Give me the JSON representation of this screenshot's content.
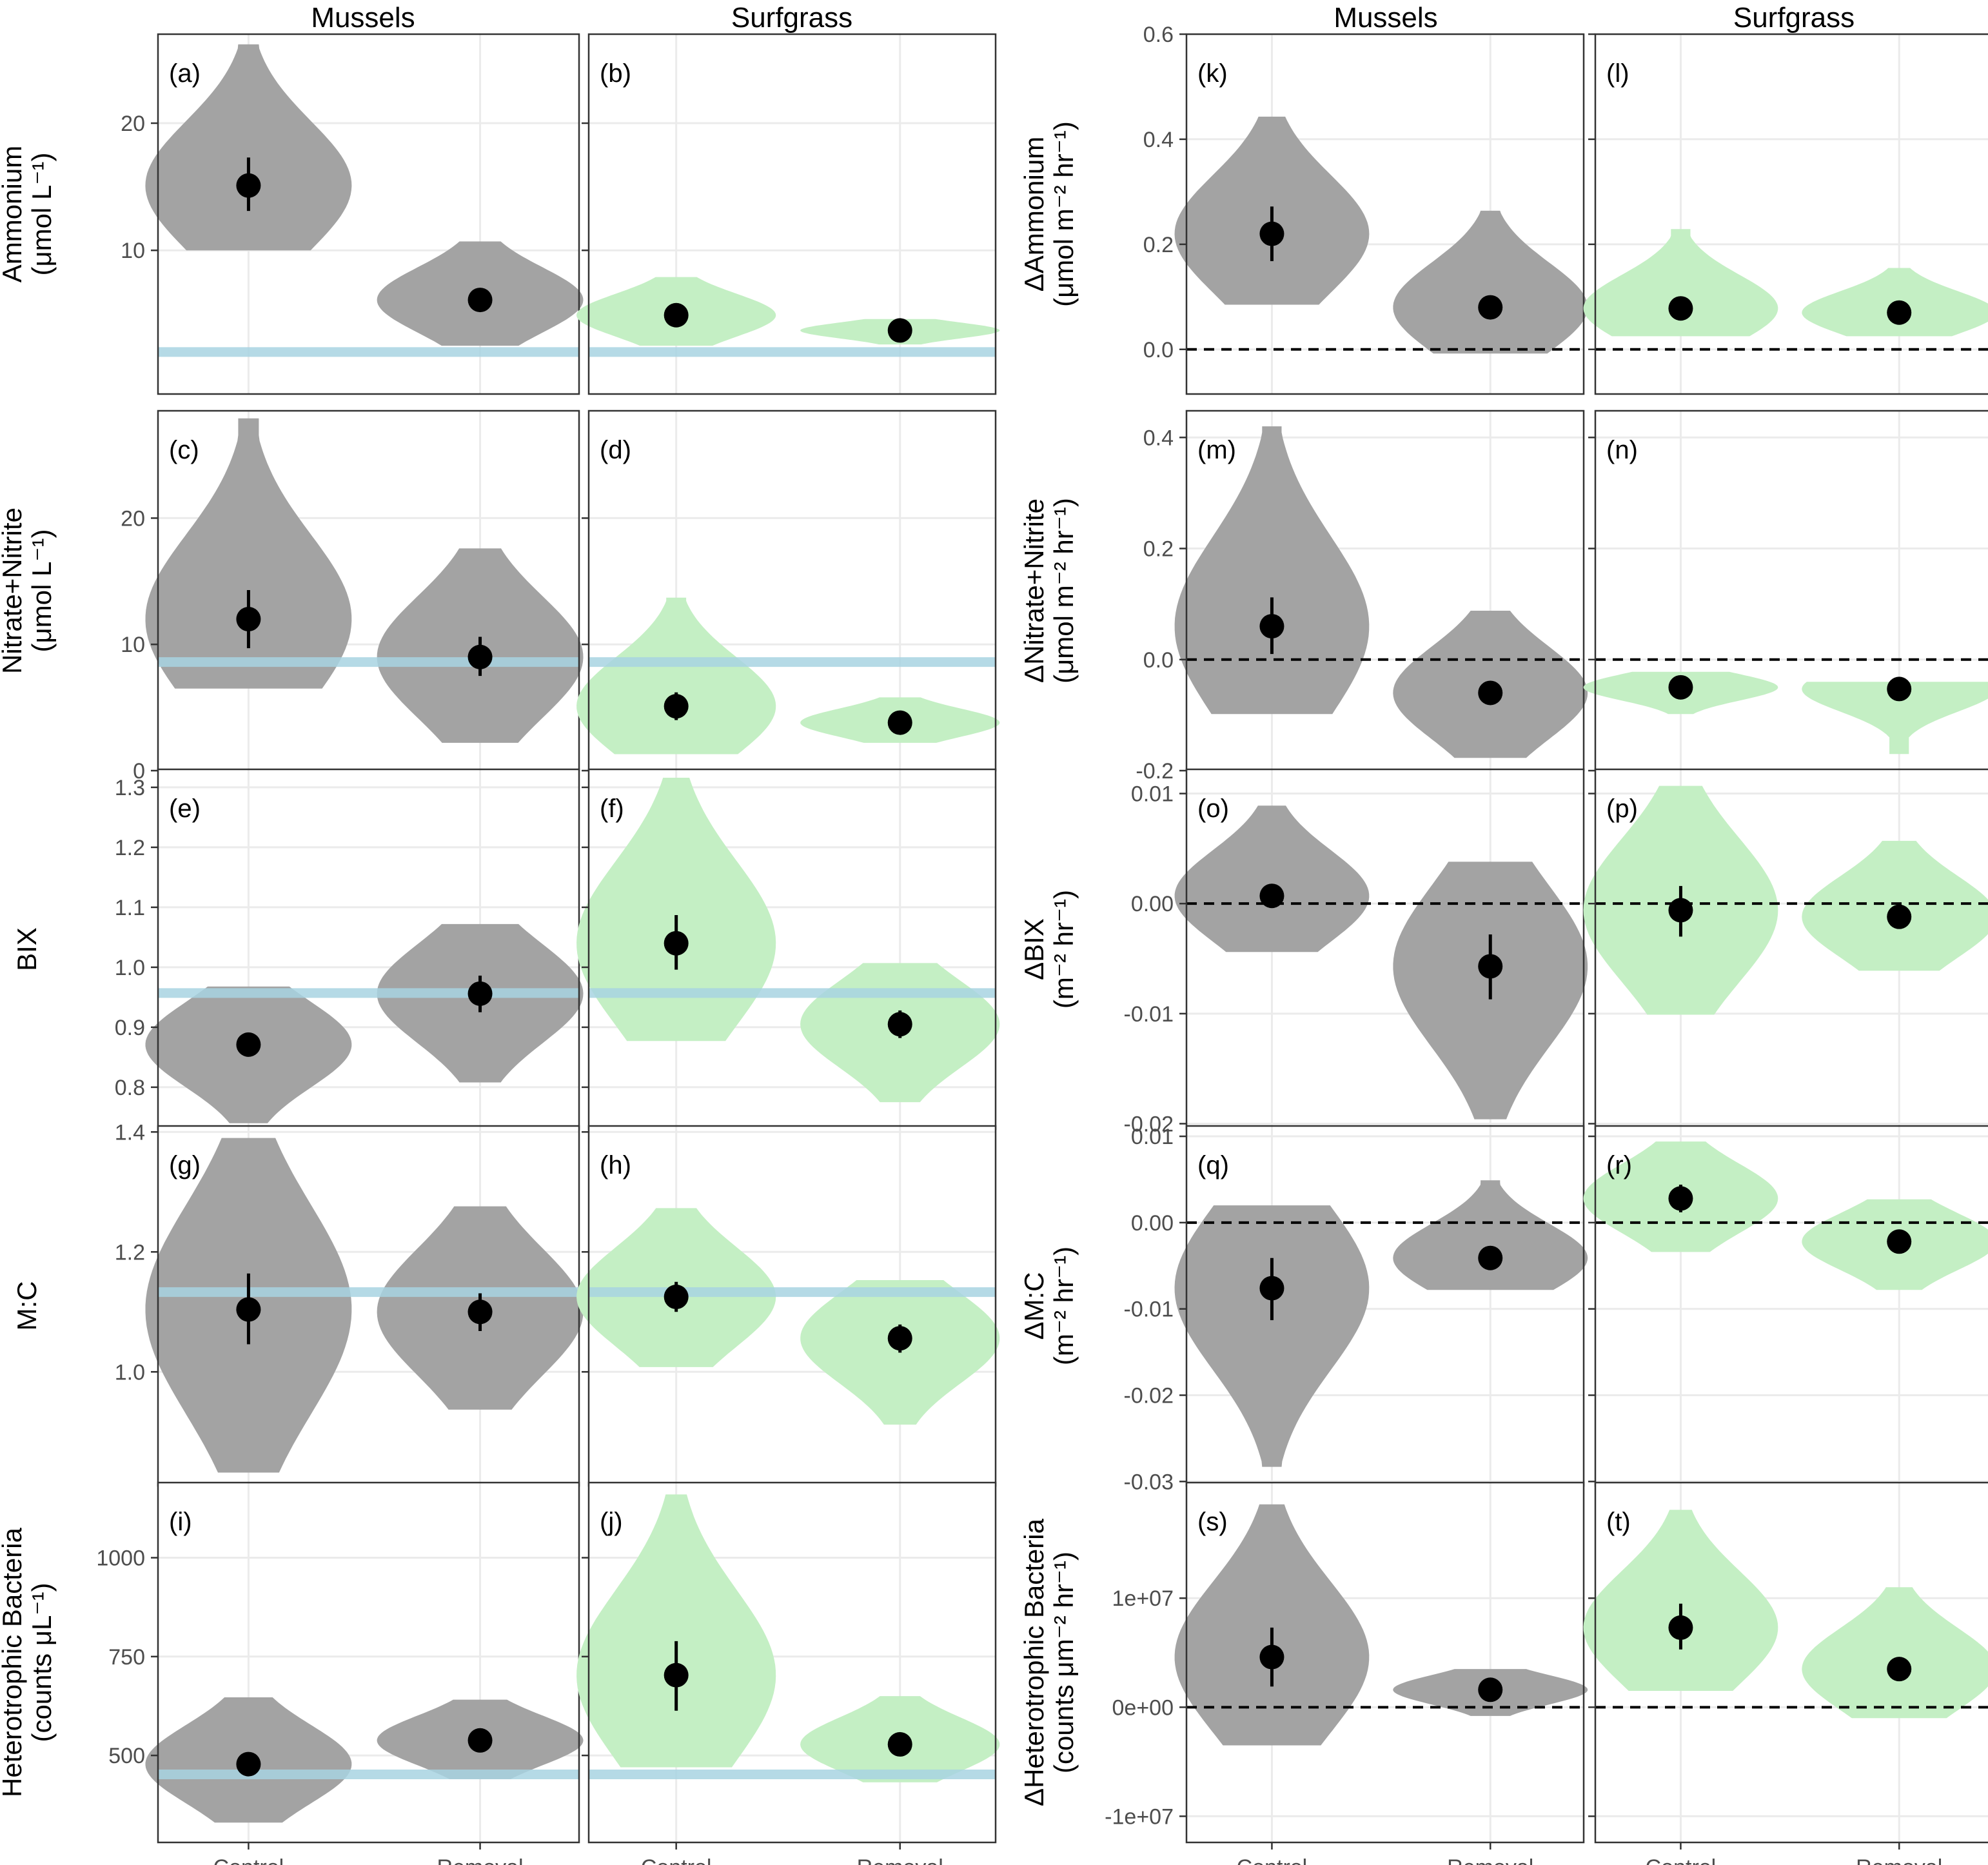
{
  "colors": {
    "mussels": "#a3a3a3",
    "surfgrass": "#c4efc4",
    "reference": "#a8d4e2",
    "point": "#000000",
    "grid": "#ebebeb",
    "border": "#333333"
  },
  "chart_data": {
    "type": "violin",
    "column_headers": {
      "left": [
        "Mussels",
        "Surfgrass"
      ],
      "right": [
        "Mussels",
        "Surfgrass"
      ]
    },
    "x_categories": [
      "Control",
      "Removal"
    ],
    "left_rows": [
      {
        "ylabel": [
          "Ammonium",
          "(μmol L⁻¹)"
        ],
        "ylim": [
          -1.3,
          27
        ],
        "ticks": [
          10,
          20
        ],
        "tick_labels": [
          "10",
          "20"
        ],
        "reference_line": 2,
        "panels": [
          {
            "label": "(a)",
            "group": "Mussels",
            "points": [
              {
                "category": "Control",
                "mean": 15.1,
                "lo": 13.1,
                "hi": 17.3,
                "min": 10,
                "max": 26.2
              },
              {
                "category": "Removal",
                "mean": 6.1,
                "lo": 5.4,
                "hi": 6.9,
                "min": 2.5,
                "max": 10.7
              }
            ]
          },
          {
            "label": "(b)",
            "group": "Surfgrass",
            "points": [
              {
                "category": "Control",
                "mean": 4.9,
                "lo": 4.3,
                "hi": 5.5,
                "min": 2.5,
                "max": 7.9
              },
              {
                "category": "Removal",
                "mean": 3.7,
                "lo": 3.4,
                "hi": 4.0,
                "min": 2.6,
                "max": 4.6
              }
            ]
          }
        ]
      },
      {
        "ylabel": [
          "Nitrate+Nitrite",
          "(μmol L⁻¹)"
        ],
        "ylim": [
          0,
          28.5
        ],
        "ticks": [
          0,
          10,
          20
        ],
        "tick_labels": [
          "0",
          "10",
          "20"
        ],
        "reference_line": 8.6,
        "panels": [
          {
            "label": "(c)",
            "group": "Mussels",
            "points": [
              {
                "category": "Control",
                "mean": 12.0,
                "lo": 9.7,
                "hi": 14.3,
                "min": 6.5,
                "max": 27.9
              },
              {
                "category": "Removal",
                "mean": 9.0,
                "lo": 7.5,
                "hi": 10.6,
                "min": 2.2,
                "max": 17.6
              }
            ]
          },
          {
            "label": "(d)",
            "group": "Surfgrass",
            "points": [
              {
                "category": "Control",
                "mean": 5.1,
                "lo": 4.0,
                "hi": 6.2,
                "min": 1.3,
                "max": 13.7
              },
              {
                "category": "Removal",
                "mean": 3.8,
                "lo": 3.4,
                "hi": 4.2,
                "min": 2.2,
                "max": 5.8
              }
            ]
          }
        ]
      },
      {
        "ylabel": [
          "BIX"
        ],
        "ylim": [
          0.73,
          1.33
        ],
        "ticks": [
          0.8,
          0.9,
          1.0,
          1.1,
          1.2,
          1.3
        ],
        "tick_labels": [
          "0.8",
          "0.9",
          "1.0",
          "1.1",
          "1.2",
          "1.3"
        ],
        "reference_line": 0.957,
        "panels": [
          {
            "label": "(e)",
            "group": "Mussels",
            "points": [
              {
                "category": "Control",
                "mean": 0.871,
                "lo": 0.851,
                "hi": 0.891,
                "min": 0.74,
                "max": 0.968
              },
              {
                "category": "Removal",
                "mean": 0.956,
                "lo": 0.925,
                "hi": 0.986,
                "min": 0.808,
                "max": 1.072
              }
            ]
          },
          {
            "label": "(f)",
            "group": "Surfgrass",
            "points": [
              {
                "category": "Control",
                "mean": 1.04,
                "lo": 0.996,
                "hi": 1.087,
                "min": 0.877,
                "max": 1.316
              },
              {
                "category": "Removal",
                "mean": 0.905,
                "lo": 0.882,
                "hi": 0.928,
                "min": 0.775,
                "max": 1.007
              }
            ]
          }
        ]
      },
      {
        "ylabel": [
          "M:C"
        ],
        "ylim": [
          0.81,
          1.41
        ],
        "ticks": [
          1.0,
          1.2,
          1.4
        ],
        "tick_labels": [
          "1.0",
          "1.2",
          "1.4"
        ],
        "reference_line": 1.133,
        "panels": [
          {
            "label": "(g)",
            "group": "Mussels",
            "points": [
              {
                "category": "Control",
                "mean": 1.104,
                "lo": 1.046,
                "hi": 1.164,
                "min": 0.832,
                "max": 1.39
              },
              {
                "category": "Removal",
                "mean": 1.1,
                "lo": 1.068,
                "hi": 1.131,
                "min": 0.937,
                "max": 1.276
              }
            ]
          },
          {
            "label": "(h)",
            "group": "Surfgrass",
            "points": [
              {
                "category": "Control",
                "mean": 1.125,
                "lo": 1.1,
                "hi": 1.15,
                "min": 1.008,
                "max": 1.273
              },
              {
                "category": "Removal",
                "mean": 1.056,
                "lo": 1.032,
                "hi": 1.079,
                "min": 0.912,
                "max": 1.153
              }
            ]
          }
        ]
      },
      {
        "ylabel": [
          "Heterotrophic Bacteria",
          "(counts μL⁻¹)"
        ],
        "ylim": [
          280,
          1190
        ],
        "ticks": [
          500,
          750,
          1000
        ],
        "tick_labels": [
          "500",
          "750",
          "1000"
        ],
        "reference_line": 452,
        "panels": [
          {
            "label": "(i)",
            "group": "Mussels",
            "points": [
              {
                "category": "Control",
                "mean": 478,
                "lo": 455,
                "hi": 502,
                "min": 330,
                "max": 647
              },
              {
                "category": "Removal",
                "mean": 538,
                "lo": 530,
                "hi": 546,
                "min": 440,
                "max": 641
              }
            ]
          },
          {
            "label": "(j)",
            "group": "Surfgrass",
            "points": [
              {
                "category": "Control",
                "mean": 703,
                "lo": 613,
                "hi": 789,
                "min": 470,
                "max": 1160
              },
              {
                "category": "Removal",
                "mean": 528,
                "lo": 515,
                "hi": 541,
                "min": 432,
                "max": 650
              }
            ]
          }
        ]
      }
    ],
    "right_rows": [
      {
        "ylabel": [
          "ΔAmmonium",
          "(μmol m⁻² hr⁻¹)"
        ],
        "ylim": [
          -0.085,
          0.6
        ],
        "ticks": [
          0.0,
          0.2,
          0.4,
          0.6
        ],
        "tick_labels": [
          "0.0",
          "0.2",
          "0.4",
          "0.6"
        ],
        "zero_line": 0,
        "panels": [
          {
            "label": "(k)",
            "group": "Mussels",
            "points": [
              {
                "category": "Control",
                "mean": 0.22,
                "lo": 0.168,
                "hi": 0.272,
                "min": 0.085,
                "max": 0.443
              },
              {
                "category": "Removal",
                "mean": 0.08,
                "lo": 0.06,
                "hi": 0.1,
                "min": -0.008,
                "max": 0.264
              }
            ]
          },
          {
            "label": "(l)",
            "group": "Surfgrass",
            "points": [
              {
                "category": "Control",
                "mean": 0.078,
                "lo": 0.065,
                "hi": 0.09,
                "min": 0.025,
                "max": 0.229
              },
              {
                "category": "Removal",
                "mean": 0.07,
                "lo": 0.062,
                "hi": 0.078,
                "min": 0.025,
                "max": 0.155
              }
            ]
          }
        ]
      },
      {
        "ylabel": [
          "ΔNitrate+Nitrite",
          "(μmol m⁻² hr⁻¹)"
        ],
        "ylim": [
          -0.2,
          0.448
        ],
        "ticks": [
          -0.2,
          0.0,
          0.2,
          0.4
        ],
        "tick_labels": [
          "-0.2",
          "0.0",
          "0.2",
          "0.4"
        ],
        "zero_line": 0,
        "panels": [
          {
            "label": "(m)",
            "group": "Mussels",
            "points": [
              {
                "category": "Control",
                "mean": 0.06,
                "lo": 0.01,
                "hi": 0.112,
                "min": -0.098,
                "max": 0.42
              },
              {
                "category": "Removal",
                "mean": -0.06,
                "lo": -0.08,
                "hi": -0.04,
                "min": -0.177,
                "max": 0.088
              }
            ]
          },
          {
            "label": "(n)",
            "group": "Surfgrass",
            "points": [
              {
                "category": "Control",
                "mean": -0.05,
                "lo": -0.056,
                "hi": -0.044,
                "min": -0.098,
                "max": -0.022
              },
              {
                "category": "Removal",
                "mean": -0.053,
                "lo": -0.059,
                "hi": -0.047,
                "min": -0.17,
                "max": -0.04
              }
            ]
          }
        ]
      },
      {
        "ylabel": [
          "ΔBIX",
          "(m⁻² hr⁻¹)"
        ],
        "ylim": [
          -0.0205,
          0.0122
        ],
        "ticks": [
          -0.02,
          -0.01,
          0.0,
          0.01
        ],
        "tick_labels": [
          "-0.02",
          "-0.01",
          "0.00",
          "0.01"
        ],
        "zero_line": 0,
        "panels": [
          {
            "label": "(o)",
            "group": "Mussels",
            "points": [
              {
                "category": "Control",
                "mean": 0.0007,
                "lo": -0.0003,
                "hi": 0.0017,
                "min": -0.0044,
                "max": 0.0089
              },
              {
                "category": "Removal",
                "mean": -0.0057,
                "lo": -0.0087,
                "hi": -0.0028,
                "min": -0.0196,
                "max": 0.0038
              }
            ]
          },
          {
            "label": "(p)",
            "group": "Surfgrass",
            "points": [
              {
                "category": "Control",
                "mean": -0.0006,
                "lo": -0.003,
                "hi": 0.0016,
                "min": -0.0101,
                "max": 0.0107
              },
              {
                "category": "Removal",
                "mean": -0.0012,
                "lo": -0.0022,
                "hi": -0.0002,
                "min": -0.0061,
                "max": 0.0057
              }
            ]
          }
        ]
      },
      {
        "ylabel": [
          "ΔM:C",
          "(m⁻² hr⁻¹)"
        ],
        "ylim": [
          -0.0305,
          0.0112
        ],
        "ticks": [
          -0.03,
          -0.02,
          -0.01,
          0.0,
          0.01
        ],
        "tick_labels": [
          "-0.03",
          "-0.02",
          "-0.01",
          "0.00",
          "0.01"
        ],
        "zero_line": 0,
        "panels": [
          {
            "label": "(q)",
            "group": "Mussels",
            "points": [
              {
                "category": "Control",
                "mean": -0.0076,
                "lo": -0.0113,
                "hi": -0.0041,
                "min": -0.0283,
                "max": 0.002
              },
              {
                "category": "Removal",
                "mean": -0.0041,
                "lo": -0.0053,
                "hi": -0.0029,
                "min": -0.0078,
                "max": 0.0049
              }
            ]
          },
          {
            "label": "(r)",
            "group": "Surfgrass",
            "points": [
              {
                "category": "Control",
                "mean": 0.0028,
                "lo": 0.0012,
                "hi": 0.0044,
                "min": -0.0034,
                "max": 0.0094
              },
              {
                "category": "Removal",
                "mean": -0.0022,
                "lo": -0.0028,
                "hi": -0.0016,
                "min": -0.0078,
                "max": 0.0027
              }
            ]
          }
        ]
      },
      {
        "ylabel": [
          "ΔHeterotrophic Bacteria",
          "(counts μm⁻² hr⁻¹)"
        ],
        "ylim": [
          -12400000,
          20600000
        ],
        "ticks": [
          -10000000,
          0,
          10000000
        ],
        "tick_labels": [
          "-1e+07",
          "0e+00",
          "1e+07"
        ],
        "zero_line": 0,
        "panels": [
          {
            "label": "(s)",
            "group": "Mussels",
            "points": [
              {
                "category": "Control",
                "mean": 4600000,
                "lo": 1900000,
                "hi": 7300000,
                "min": -3500000,
                "max": 18600000
              },
              {
                "category": "Removal",
                "mean": 1600000,
                "lo": 1200000,
                "hi": 2000000,
                "min": -800000,
                "max": 3500000
              }
            ]
          },
          {
            "label": "(t)",
            "group": "Surfgrass",
            "points": [
              {
                "category": "Control",
                "mean": 7300000,
                "lo": 5300000,
                "hi": 9500000,
                "min": 1500000,
                "max": 18100000
              },
              {
                "category": "Removal",
                "mean": 3500000,
                "lo": 2400000,
                "hi": 4600000,
                "min": -1000000,
                "max": 11000000
              }
            ]
          }
        ]
      }
    ]
  }
}
